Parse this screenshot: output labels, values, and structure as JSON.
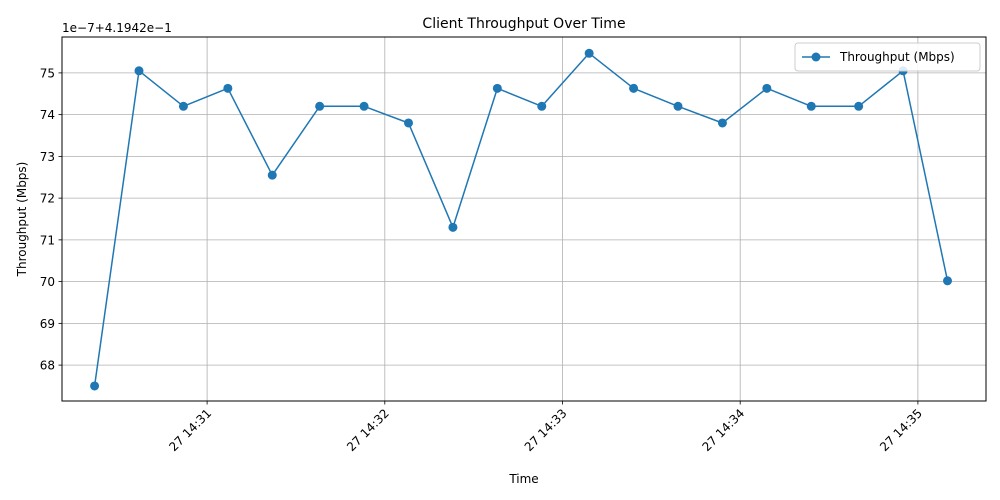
{
  "chart_data": {
    "type": "line",
    "title": "Client Throughput Over Time",
    "xlabel": "Time",
    "ylabel": "Throughput (Mbps)",
    "y_offset_label": "1e−7+4.1942e−1",
    "grid": true,
    "legend_position": "top-right",
    "series": [
      {
        "name": "Throughput (Mbps)",
        "color": "#1f77b4",
        "marker": "circle",
        "x": [
          "14:30:22",
          "14:30:37",
          "14:30:52",
          "14:31:07",
          "14:31:22",
          "14:31:38",
          "14:31:53",
          "14:32:08",
          "14:32:23",
          "14:32:38",
          "14:32:53",
          "14:33:09",
          "14:33:24",
          "14:33:39",
          "14:33:54",
          "14:34:09",
          "14:34:24",
          "14:34:40",
          "14:34:55",
          "14:35:10"
        ],
        "values": [
          67.5,
          75.05,
          74.2,
          74.63,
          72.55,
          74.2,
          74.2,
          73.8,
          71.3,
          74.63,
          74.2,
          75.47,
          74.63,
          74.2,
          73.8,
          74.63,
          74.2,
          74.2,
          75.05,
          70.02
        ]
      }
    ],
    "x_ticks": [
      "14:31",
      "14:32",
      "14:33",
      "14:34",
      "14:35"
    ],
    "x_tick_labels": [
      "27 14:31",
      "27 14:32",
      "27 14:33",
      "27 14:34",
      "27 14:35"
    ],
    "y_ticks": [
      68,
      69,
      70,
      71,
      72,
      73,
      74,
      75
    ],
    "y_tick_labels": [
      "68",
      "69",
      "70",
      "71",
      "72",
      "73",
      "74",
      "75"
    ],
    "xlim": [
      "14:30:11",
      "14:35:23"
    ],
    "ylim": [
      67.14,
      75.86
    ]
  }
}
